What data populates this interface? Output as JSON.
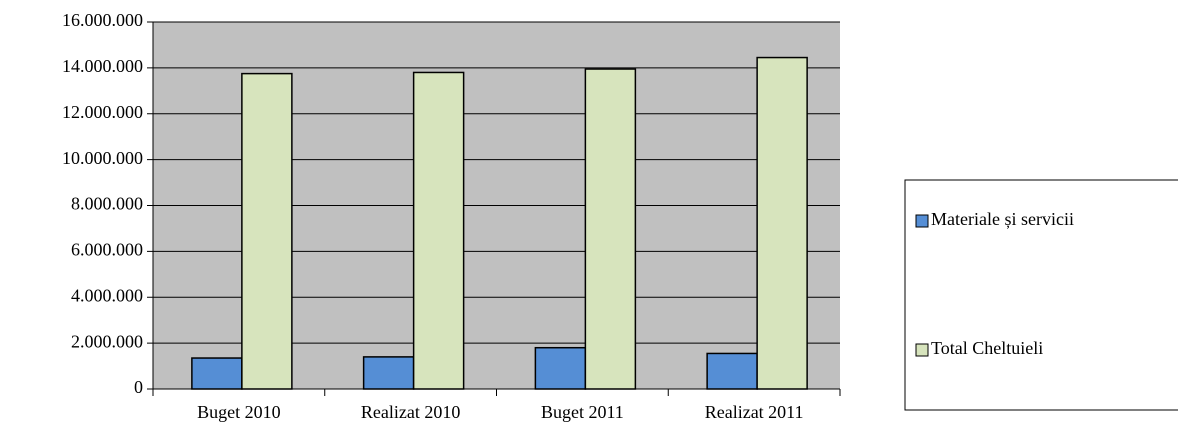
{
  "chart_data": {
    "type": "bar",
    "categories": [
      "Buget 2010",
      "Realizat 2010",
      "Buget 2011",
      "Realizat 2011"
    ],
    "series": [
      {
        "name": "Materiale și servicii",
        "color": "#558ed5",
        "values": [
          1350000,
          1400000,
          1800000,
          1550000
        ]
      },
      {
        "name": "Total Cheltuieli",
        "color": "#d7e4bd",
        "values": [
          13750000,
          13800000,
          13950000,
          14450000
        ]
      }
    ],
    "ylim": [
      0,
      16000000
    ],
    "yticks": [
      0,
      {
        "value": 2000000,
        "label": "2.000.000"
      },
      {
        "value": 4000000,
        "label": "4.000.000"
      },
      {
        "value": 6000000,
        "label": "6.000.000"
      },
      {
        "value": 8000000,
        "label": "8.000.000"
      },
      {
        "value": 10000000,
        "label": "10.000.000"
      },
      {
        "value": 12000000,
        "label": "12.000.000"
      },
      {
        "value": 14000000,
        "label": "14.000.000"
      },
      {
        "value": 16000000,
        "label": "16.000.000"
      }
    ],
    "grid": true,
    "plot_background": "#c0c0c0",
    "legend": "right"
  }
}
